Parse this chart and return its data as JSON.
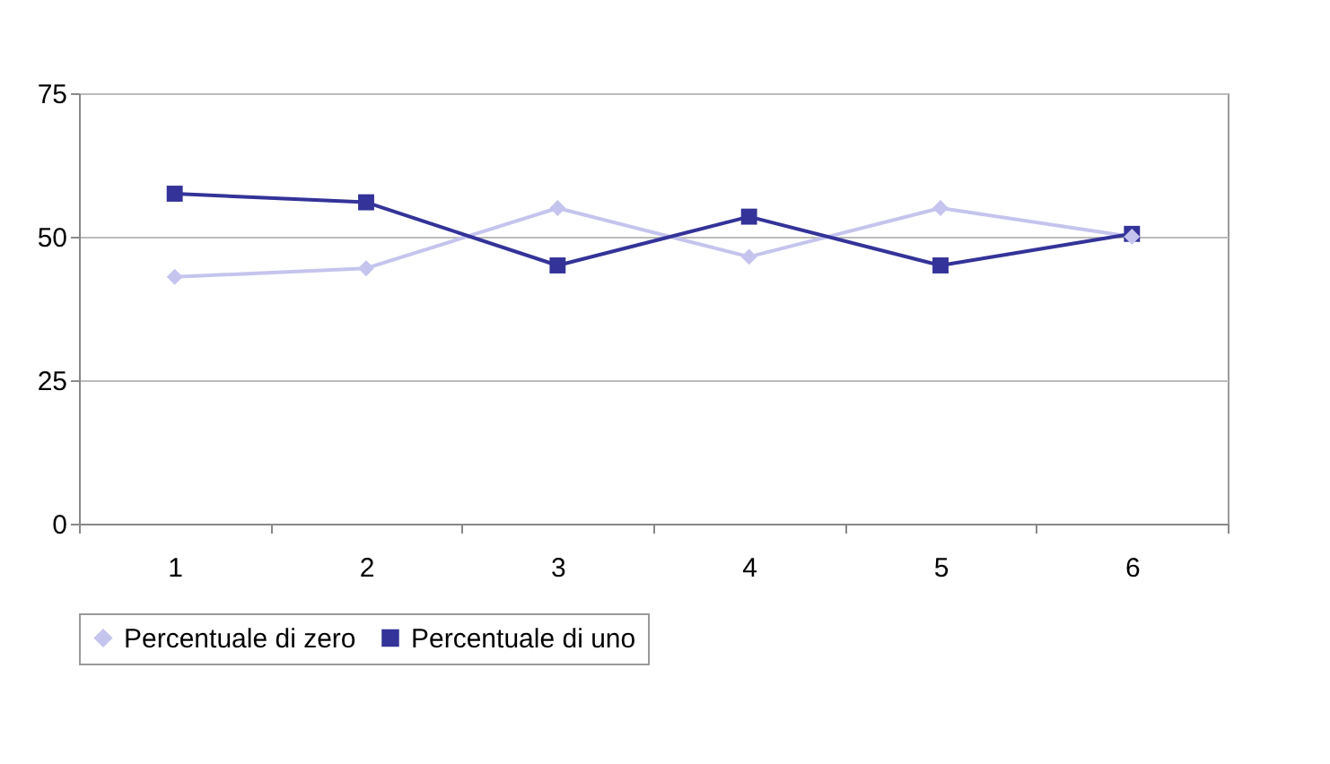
{
  "chart_data": {
    "type": "line",
    "categories": [
      "1",
      "2",
      "3",
      "4",
      "5",
      "6"
    ],
    "series": [
      {
        "name": "Percentuale di zero",
        "color": "#c4c4ee",
        "marker": "diamond",
        "values": [
          43,
          44.5,
          55,
          46.5,
          55,
          50
        ]
      },
      {
        "name": "Percentuale di uno",
        "color": "#333399",
        "marker": "square",
        "values": [
          57.5,
          56,
          45,
          53.5,
          45,
          50.5
        ]
      }
    ],
    "ylim": [
      0,
      75
    ],
    "yticks": [
      0,
      25,
      50,
      75
    ],
    "grid": "y",
    "legend": "bottom"
  }
}
